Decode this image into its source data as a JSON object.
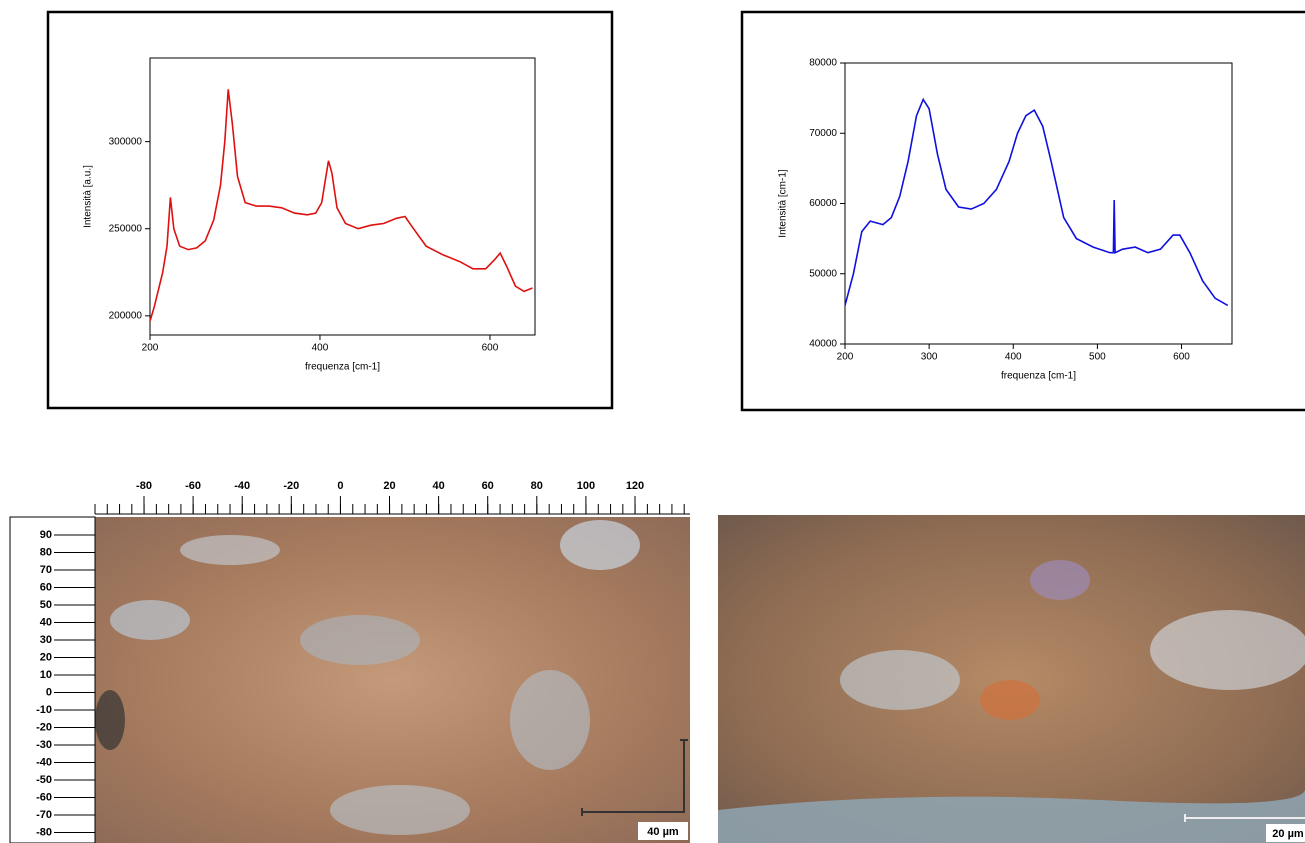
{
  "chart_data": [
    {
      "type": "line",
      "x_label": "frequenza [cm-1]",
      "y_label": "Intensità [a.u.]",
      "color": "#e01010",
      "xlim": [
        200,
        653
      ],
      "ylim": [
        189000,
        348000
      ],
      "xticks": [
        200,
        400,
        600
      ],
      "yticks": [
        200000,
        250000,
        300000
      ],
      "x": [
        200,
        205,
        215,
        220,
        224,
        228,
        235,
        245,
        255,
        265,
        275,
        283,
        288,
        292,
        297,
        303,
        312,
        325,
        340,
        355,
        370,
        385,
        395,
        402,
        407,
        410,
        414,
        420,
        430,
        445,
        460,
        475,
        490,
        500,
        510,
        525,
        545,
        565,
        580,
        595,
        605,
        612,
        620,
        630,
        640,
        650
      ],
      "values": [
        197000,
        205000,
        225000,
        240000,
        268000,
        250000,
        240000,
        238000,
        239000,
        243000,
        255000,
        275000,
        300000,
        330000,
        310000,
        280000,
        265000,
        263000,
        263000,
        262000,
        259000,
        258000,
        259000,
        265000,
        280000,
        289000,
        282000,
        262000,
        253000,
        250000,
        252000,
        253000,
        256000,
        257000,
        250000,
        240000,
        235000,
        231000,
        227000,
        227000,
        232000,
        236000,
        228000,
        217000,
        214000,
        216000
      ]
    },
    {
      "type": "line",
      "x_label": "frequenza [cm-1]",
      "y_label": "Intensità [cm-1]",
      "color": "#1010e0",
      "xlim": [
        200,
        660
      ],
      "ylim": [
        40000,
        80000
      ],
      "xticks": [
        200,
        300,
        400,
        500,
        600
      ],
      "yticks": [
        40000,
        50000,
        60000,
        70000,
        80000
      ],
      "x": [
        200,
        210,
        220,
        230,
        245,
        255,
        265,
        275,
        285,
        293,
        300,
        310,
        320,
        335,
        350,
        365,
        380,
        395,
        405,
        415,
        425,
        435,
        445,
        460,
        475,
        495,
        515,
        519,
        520,
        521,
        530,
        545,
        560,
        575,
        590,
        598,
        610,
        625,
        640,
        655
      ],
      "values": [
        45500,
        50000,
        56000,
        57500,
        57000,
        58000,
        61000,
        66000,
        72500,
        74800,
        73500,
        67000,
        62000,
        59500,
        59200,
        60000,
        62000,
        66000,
        70000,
        72500,
        73300,
        71000,
        66000,
        58000,
        55000,
        53800,
        53000,
        53000,
        60500,
        53000,
        53500,
        53800,
        53000,
        53500,
        55500,
        55500,
        53000,
        49000,
        46500,
        45500
      ]
    }
  ],
  "micrographs": [
    {
      "top_ruler": [
        -80,
        -60,
        -40,
        -20,
        0,
        20,
        40,
        60,
        80,
        100,
        120
      ],
      "left_ruler": [
        90,
        80,
        70,
        60,
        50,
        40,
        30,
        20,
        10,
        0,
        -10,
        -20,
        -30,
        -40,
        -50,
        -60,
        -70,
        -80
      ],
      "scale_label": "40 µm"
    },
    {
      "scale_label": "20 µm"
    }
  ]
}
